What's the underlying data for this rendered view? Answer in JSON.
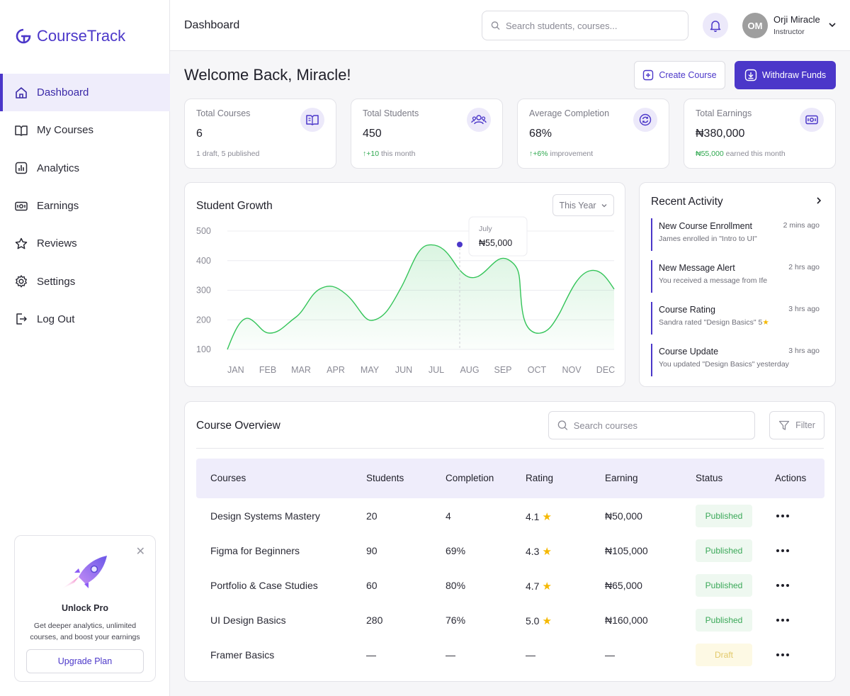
{
  "app": {
    "name": "CourseTrack"
  },
  "sidebar": {
    "items": [
      {
        "label": "Dashboard",
        "icon": "home-icon",
        "active": true
      },
      {
        "label": "My Courses",
        "icon": "book-icon"
      },
      {
        "label": "Analytics",
        "icon": "analytics-icon"
      },
      {
        "label": "Earnings",
        "icon": "money-icon"
      },
      {
        "label": "Reviews",
        "icon": "star-icon"
      },
      {
        "label": "Settings",
        "icon": "gear-icon"
      },
      {
        "label": "Log Out",
        "icon": "logout-icon"
      }
    ],
    "promo": {
      "title": "Unlock Pro",
      "description": "Get deeper analytics, unlimited courses, and boost your earnings",
      "button": "Upgrade Plan"
    }
  },
  "header": {
    "title": "Dashboard",
    "search_placeholder": "Search students, courses...",
    "user": {
      "initials": "OM",
      "name": "Orji Miracle",
      "role": "Instructor"
    }
  },
  "main": {
    "welcome": "Welcome Back, Miracle!",
    "create_button": "Create Course",
    "withdraw_button": "Withdraw Funds",
    "stats": [
      {
        "label": "Total Courses",
        "value": "6",
        "sub": "1 draft, 5 published",
        "icon": "book-open-icon"
      },
      {
        "label": "Total Students",
        "value": "450",
        "sub_up": "+10",
        "sub": " this month",
        "icon": "users-icon"
      },
      {
        "label": "Average Completion",
        "value": "68%",
        "sub_up": "+6%",
        "sub": " improvement",
        "icon": "refresh-icon"
      },
      {
        "label": "Total Earnings",
        "value": "₦380,000",
        "sub_up": "₦55,000",
        "sub": " earned this month",
        "icon": "money-icon"
      }
    ]
  },
  "chart_data": {
    "type": "area",
    "title": "Student Growth",
    "period": "This Year",
    "categories": [
      "JAN",
      "FEB",
      "MAR",
      "APR",
      "MAY",
      "JUN",
      "JUL",
      "AUG",
      "SEP",
      "OCT",
      "NOV",
      "DEC"
    ],
    "yticks": [
      "500",
      "400",
      "300",
      "200",
      "100"
    ],
    "ylim": [
      100,
      500
    ],
    "line_color": "#34c459",
    "grid": true,
    "tooltip": {
      "label": "July",
      "value": "₦55,000"
    }
  },
  "activity": {
    "title": "Recent Activity",
    "items": [
      {
        "title": "New Course Enrollment",
        "desc": "James enrolled in \"Intro to UI\"",
        "time": "2 mins ago"
      },
      {
        "title": "New Message Alert",
        "desc": "You received a message from Ife",
        "time": "2 hrs ago"
      },
      {
        "title": "Course Rating",
        "desc": "Sandra rated \"Design Basics\" 5",
        "time": "3 hrs ago",
        "star": true
      },
      {
        "title": "Course Update",
        "desc": "You updated \"Design Basics\" yesterday",
        "time": "3 hrs ago"
      }
    ]
  },
  "overview": {
    "title": "Course Overview",
    "search_placeholder": "Search courses",
    "filter": "Filter",
    "columns": [
      "Courses",
      "Students",
      "Completion",
      "Rating",
      "Earning",
      "Status",
      "Actions"
    ],
    "rows": [
      {
        "course": "Design Systems Mastery",
        "students": "20",
        "completion": "4",
        "rating": "4.1",
        "earning": "₦50,000",
        "status": "Published"
      },
      {
        "course": "Figma for Beginners",
        "students": "90",
        "completion": "69%",
        "rating": "4.3",
        "earning": "₦105,000",
        "status": "Published"
      },
      {
        "course": "Portfolio & Case Studies",
        "students": "60",
        "completion": "80%",
        "rating": "4.7",
        "earning": "₦65,000",
        "status": "Published"
      },
      {
        "course": "UI Design Basics",
        "students": "280",
        "completion": "76%",
        "rating": "5.0",
        "earning": "₦160,000",
        "status": "Published"
      },
      {
        "course": "Framer Basics",
        "students": "—",
        "completion": "—",
        "rating": "—",
        "earning": "—",
        "status": "Draft"
      }
    ]
  },
  "colors": {
    "accent": "#4b37c9",
    "accent_light": "#efedfb",
    "success": "#2fa84f",
    "star": "#f5b800"
  }
}
